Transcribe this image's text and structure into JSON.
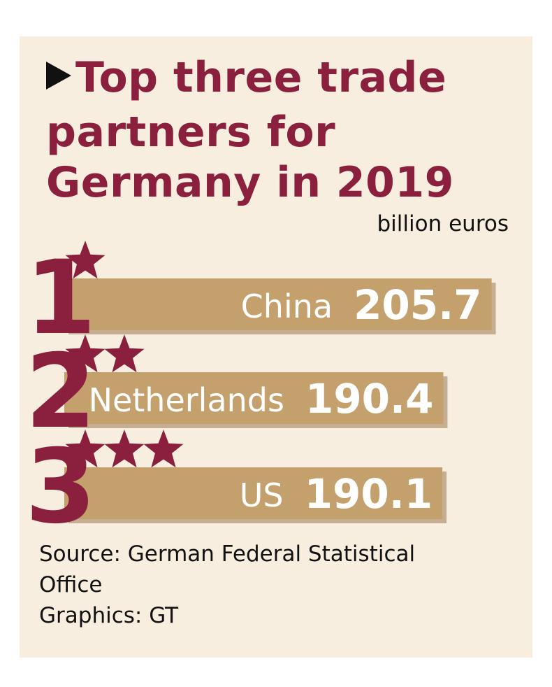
{
  "colors": {
    "panel": "#f8eedf",
    "accent": "#8b1f3e",
    "bar": "#c4a06c",
    "bar_shadow": "#9a7a52",
    "text_dark": "#111111",
    "bar_text": "#ffffff"
  },
  "title": {
    "line1": "Top three trade",
    "line2": "partners for",
    "line3": "Germany in 2019",
    "arrow_icon": "play-arrow-icon"
  },
  "unit_label": "billion euros",
  "footer": {
    "source_line1": "Source: German Federal Statistical",
    "source_line2": "Office",
    "graphics": "Graphics: GT"
  },
  "chart_data": {
    "type": "bar",
    "orientation": "horizontal",
    "title": "Top three trade partners for Germany in 2019",
    "unit": "billion euros",
    "categories": [
      "China",
      "Netherlands",
      "US"
    ],
    "values": [
      205.7,
      190.4,
      190.1
    ],
    "value_labels": [
      "205.7",
      "190.4",
      "190.1"
    ],
    "ranks": [
      "1",
      "2",
      "3"
    ],
    "stars": [
      1,
      2,
      3
    ],
    "star_icon": "star-icon"
  }
}
